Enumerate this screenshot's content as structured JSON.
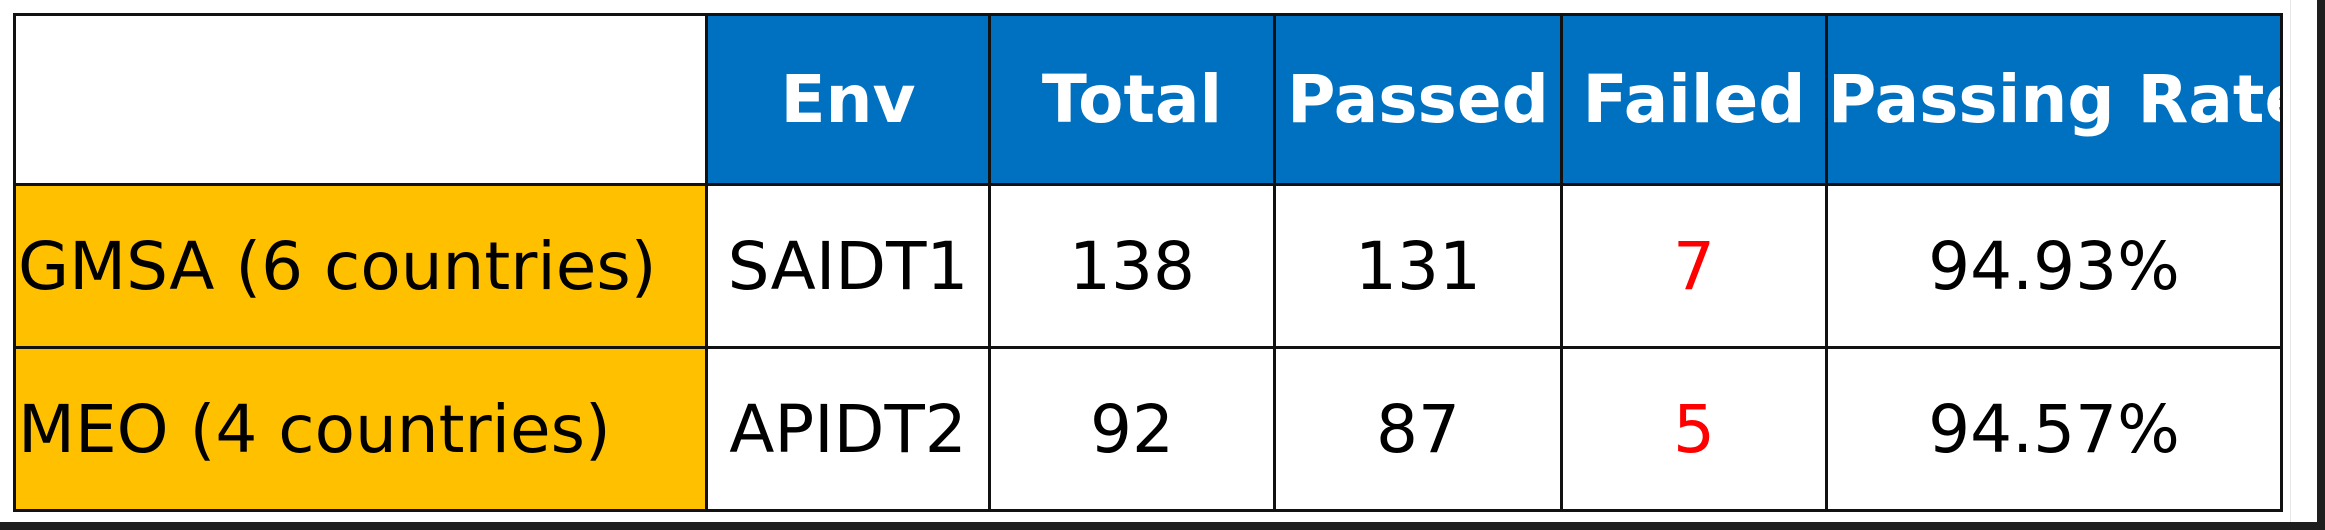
{
  "table": {
    "headers": {
      "env": "Env",
      "total": "Total",
      "passed": "Passed",
      "failed": "Failed",
      "passing_rate": "Passing Rate"
    },
    "rows": [
      {
        "group": "GMSA (6 countries)",
        "env": "SAIDT1",
        "total": "138",
        "passed": "131",
        "failed": "7",
        "passing_rate": "94.93%"
      },
      {
        "group": "MEO (4 countries)",
        "env": "APIDT2",
        "total": "92",
        "passed": "87",
        "failed": "5",
        "passing_rate": "94.57%"
      }
    ]
  },
  "colors": {
    "header_bg": "#0070c0",
    "header_text": "#ffffff",
    "group_bg": "#ffc000",
    "failed_text": "#ff0000"
  }
}
